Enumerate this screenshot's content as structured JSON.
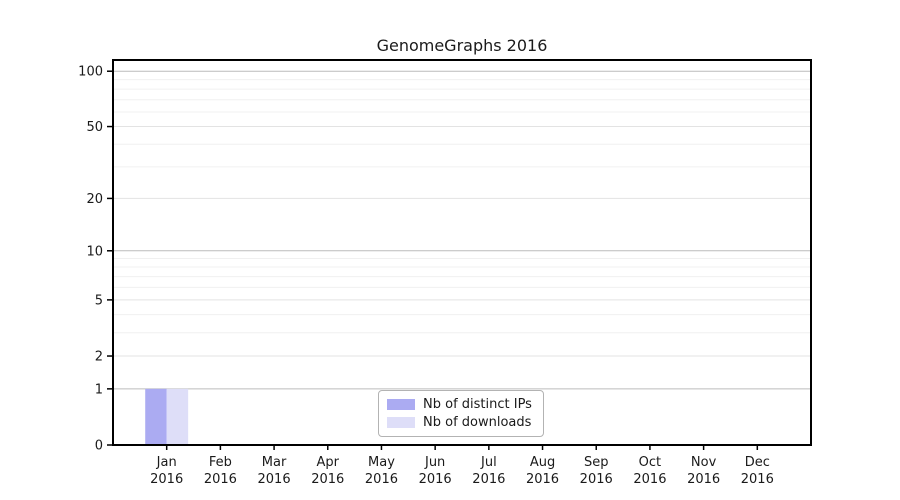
{
  "figure": {
    "title": "GenomeGraphs 2016"
  },
  "chart_data": {
    "type": "bar",
    "title": "GenomeGraphs 2016",
    "x_tick_labels": [
      [
        "Jan",
        "2016"
      ],
      [
        "Feb",
        "2016"
      ],
      [
        "Mar",
        "2016"
      ],
      [
        "Apr",
        "2016"
      ],
      [
        "May",
        "2016"
      ],
      [
        "Jun",
        "2016"
      ],
      [
        "Jul",
        "2016"
      ],
      [
        "Aug",
        "2016"
      ],
      [
        "Sep",
        "2016"
      ],
      [
        "Oct",
        "2016"
      ],
      [
        "Nov",
        "2016"
      ],
      [
        "Dec",
        "2016"
      ]
    ],
    "series": [
      {
        "name": "Nb of distinct IPs",
        "color": "#ababf2",
        "values": [
          1,
          0,
          0,
          0,
          0,
          0,
          0,
          0,
          0,
          0,
          0,
          0
        ]
      },
      {
        "name": "Nb of downloads",
        "color": "#dedef8",
        "values": [
          1,
          0,
          0,
          0,
          0,
          0,
          0,
          0,
          0,
          0,
          0,
          0
        ]
      }
    ],
    "yscale": "log1p",
    "ylim": [
      0,
      115
    ],
    "y_major_ticks": [
      0,
      1,
      2,
      5,
      10,
      20,
      50,
      100
    ],
    "y_decade_ticks": [
      1,
      10,
      100
    ],
    "y_minor_ticks": [
      3,
      4,
      6,
      7,
      8,
      9,
      30,
      40,
      60,
      70,
      80,
      90
    ],
    "grid": true,
    "legend_position": "lower center",
    "colors": {
      "grid_decade": "#bcbcbc",
      "grid_major": "#e3e3e3",
      "grid_minor": "#f0f0f0",
      "spine": "#000000",
      "tick": "#000000",
      "text": "#1a1a1a",
      "legend_border": "#b3b3b3",
      "background": "#ffffff"
    }
  }
}
